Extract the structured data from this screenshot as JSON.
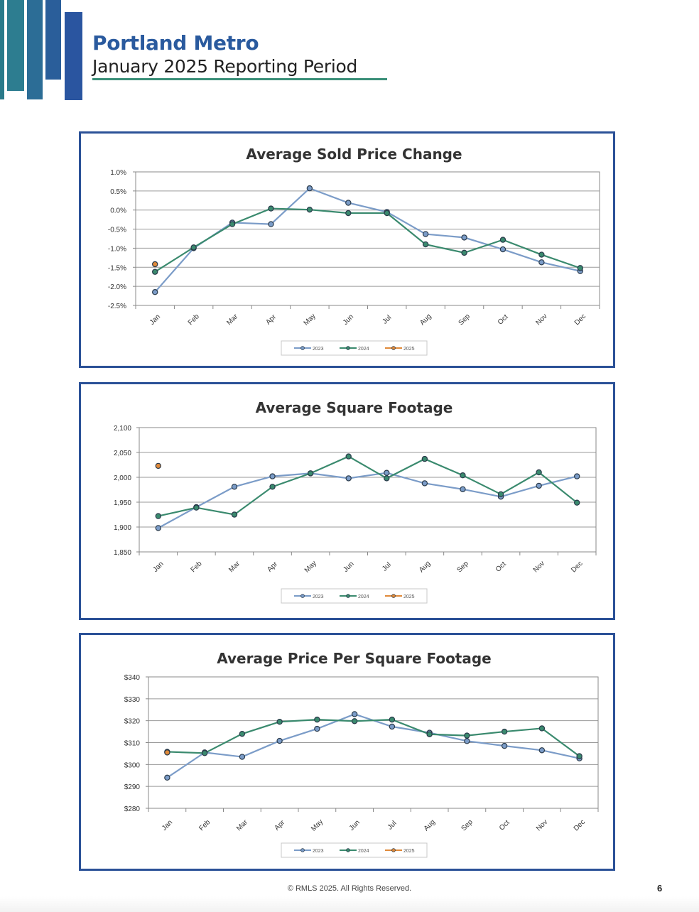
{
  "header": {
    "title": "Portland Metro",
    "subtitle": "January 2025 Reporting Period"
  },
  "footer": {
    "copyright": "© RMLS 2025. All Rights Reserved.",
    "page_number": "6"
  },
  "colors": {
    "2023": "#7b9cc8",
    "2024": "#3a8a6e",
    "2025": "#e08a3a",
    "frame": "#2b5197"
  },
  "chart_data": [
    {
      "type": "line",
      "title": "Average Sold Price Change",
      "categories": [
        "Jan",
        "Feb",
        "Mar",
        "Apr",
        "May",
        "Jun",
        "Jul",
        "Aug",
        "Sep",
        "Oct",
        "Nov",
        "Dec"
      ],
      "ylim": [
        -2.5,
        1.0
      ],
      "yticks": [
        1.0,
        0.5,
        0.0,
        -0.5,
        -1.0,
        -1.5,
        -2.0,
        -2.5
      ],
      "ytick_labels": [
        "1.0%",
        "0.5%",
        "0.0%",
        "-0.5%",
        "-1.0%",
        "-1.5%",
        "-2.0%",
        "-2.5%"
      ],
      "grid": true,
      "legend_position": "bottom",
      "series": [
        {
          "name": "2023",
          "values": [
            -2.15,
            -1.0,
            -0.33,
            -0.37,
            0.57,
            0.19,
            -0.05,
            -0.63,
            -0.72,
            -1.03,
            -1.37,
            -1.6
          ]
        },
        {
          "name": "2024",
          "values": [
            -1.62,
            -0.98,
            -0.37,
            0.04,
            0.01,
            -0.08,
            -0.08,
            -0.9,
            -1.12,
            -0.78,
            -1.17,
            -1.52
          ]
        },
        {
          "name": "2025",
          "values": [
            -1.42,
            null,
            null,
            null,
            null,
            null,
            null,
            null,
            null,
            null,
            null,
            null
          ]
        }
      ]
    },
    {
      "type": "line",
      "title": "Average Square Footage",
      "categories": [
        "Jan",
        "Feb",
        "Mar",
        "Apr",
        "May",
        "Jun",
        "Jul",
        "Aug",
        "Sep",
        "Oct",
        "Nov",
        "Dec"
      ],
      "ylim": [
        1850,
        2100
      ],
      "yticks": [
        2100,
        2050,
        2000,
        1950,
        1900,
        1850
      ],
      "ytick_labels": [
        "2,100",
        "2,050",
        "2,000",
        "1,950",
        "1,900",
        "1,850"
      ],
      "grid": true,
      "legend_position": "bottom",
      "series": [
        {
          "name": "2023",
          "values": [
            1898,
            1940,
            1981,
            2002,
            2008,
            1998,
            2009,
            1988,
            1976,
            1961,
            1983,
            2002
          ]
        },
        {
          "name": "2024",
          "values": [
            1922,
            1939,
            1925,
            1981,
            2008,
            2042,
            1998,
            2037,
            2004,
            1966,
            2010,
            1949
          ]
        },
        {
          "name": "2025",
          "values": [
            2023,
            null,
            null,
            null,
            null,
            null,
            null,
            null,
            null,
            null,
            null,
            null
          ]
        }
      ]
    },
    {
      "type": "line",
      "title": "Average Price Per Square Footage",
      "categories": [
        "Jan",
        "Feb",
        "Mar",
        "Apr",
        "May",
        "Jun",
        "Jul",
        "Aug",
        "Sep",
        "Oct",
        "Nov",
        "Dec"
      ],
      "ylim": [
        280,
        340
      ],
      "yticks": [
        340,
        330,
        320,
        310,
        300,
        290,
        280
      ],
      "ytick_labels": [
        "$340",
        "$330",
        "$320",
        "$310",
        "$300",
        "$290",
        "$280"
      ],
      "grid": true,
      "legend_position": "bottom",
      "series": [
        {
          "name": "2023",
          "values": [
            294,
            305.5,
            303.5,
            310.8,
            316.3,
            323,
            317.3,
            314.5,
            310.7,
            308.5,
            306.5,
            302.8
          ]
        },
        {
          "name": "2024",
          "values": [
            305.8,
            305.2,
            314,
            319.5,
            320.5,
            319.8,
            320.5,
            313.8,
            313.2,
            315,
            316.5,
            303.8
          ]
        },
        {
          "name": "2025",
          "values": [
            305.5,
            null,
            null,
            null,
            null,
            null,
            null,
            null,
            null,
            null,
            null,
            null
          ]
        }
      ]
    }
  ]
}
